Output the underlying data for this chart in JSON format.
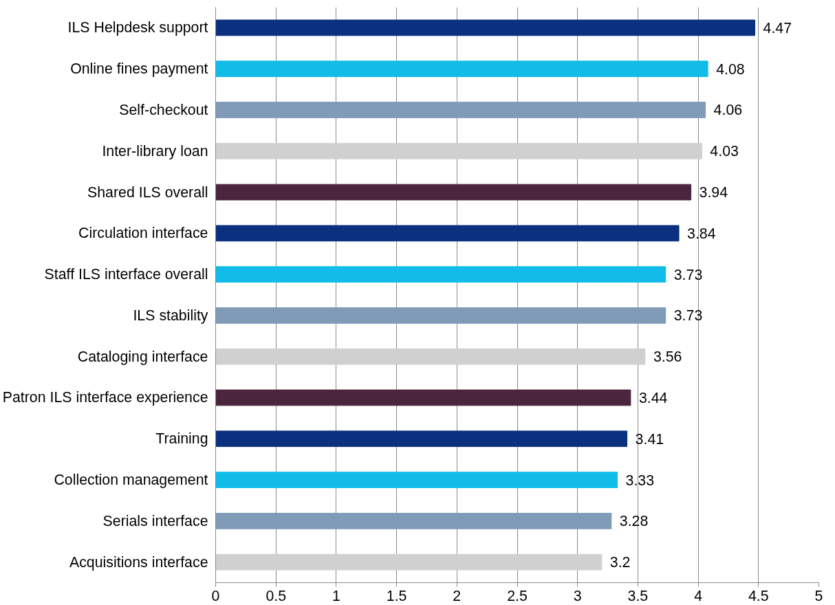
{
  "chart_data": {
    "type": "bar",
    "orientation": "horizontal",
    "categories": [
      "ILS Helpdesk support",
      "Online fines payment",
      "Self-checkout",
      "Inter-library loan",
      "Shared ILS overall",
      "Circulation interface",
      "Staff ILS interface overall",
      "ILS stability",
      "Cataloging interface",
      "Patron ILS interface experience",
      "Training",
      "Collection management",
      "Serials interface",
      "Acquisitions interface"
    ],
    "values": [
      4.47,
      4.08,
      4.06,
      4.03,
      3.94,
      3.84,
      3.73,
      3.73,
      3.56,
      3.44,
      3.41,
      3.33,
      3.28,
      3.2
    ],
    "colors": [
      "#0b307f",
      "#12bce9",
      "#7f9bb8",
      "#d0d0d0",
      "#4a253d",
      "#0b307f",
      "#12bce9",
      "#7f9bb8",
      "#d0d0d0",
      "#4a253d",
      "#0b307f",
      "#12bce9",
      "#7f9bb8",
      "#d0d0d0"
    ],
    "xlim": [
      0,
      5
    ],
    "xticks": [
      0,
      0.5,
      1,
      1.5,
      2,
      2.5,
      3,
      3.5,
      4,
      4.5,
      5
    ],
    "grid": "x",
    "data_labels": true
  }
}
